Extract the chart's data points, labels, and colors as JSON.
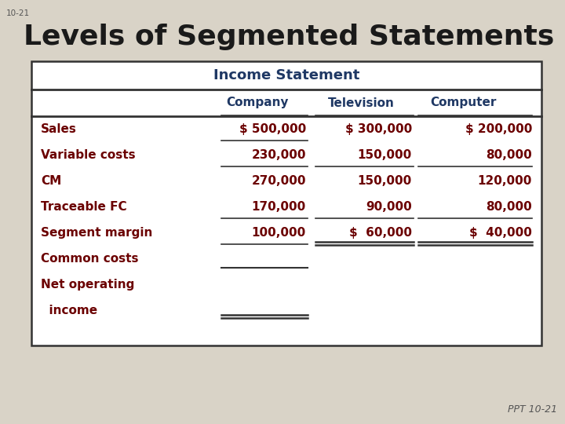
{
  "bg_color": "#d9d3c7",
  "slide_num": "10-21",
  "title": "Levels of Segmented Statements",
  "title_color": "#1a1a1a",
  "title_fontsize": 26,
  "ppt_label": "PPT 10-21",
  "table_bg": "#ffffff",
  "header_color": "#1f3864",
  "data_color": "#6b0000",
  "header_row": "Income Statement",
  "col_headers": [
    "Company",
    "Television",
    "Computer"
  ],
  "rows": [
    [
      "Sales",
      "$ 500,000",
      "$ 300,000",
      "$ 200,000"
    ],
    [
      "Variable costs",
      "230,000",
      "150,000",
      "80,000"
    ],
    [
      "CM",
      "270,000",
      "150,000",
      "120,000"
    ],
    [
      "Traceable FC",
      "170,000",
      "90,000",
      "80,000"
    ],
    [
      "Segment margin",
      "100,000",
      "$  60,000",
      "$  40,000"
    ],
    [
      "Common costs",
      "",
      "",
      ""
    ],
    [
      "Net operating",
      "",
      "",
      ""
    ],
    [
      "  income",
      "",
      "",
      ""
    ]
  ]
}
